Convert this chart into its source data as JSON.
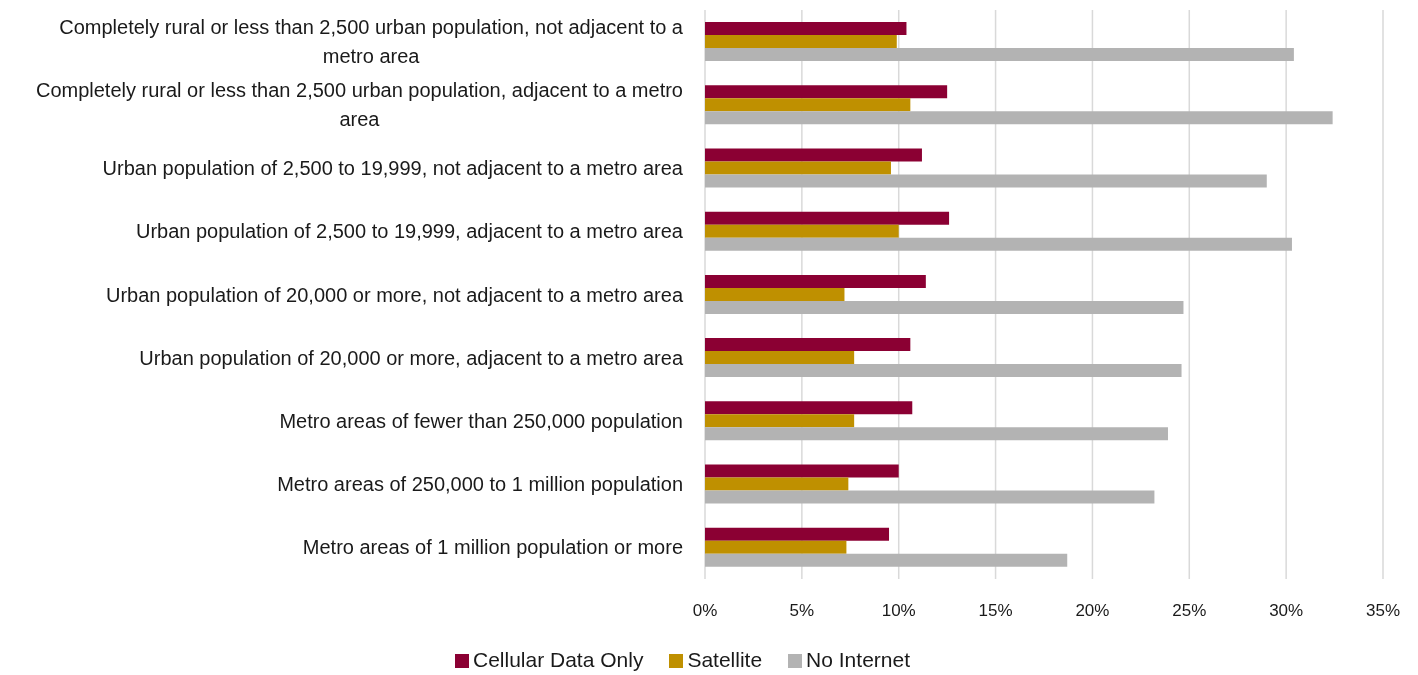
{
  "chart_data": {
    "type": "bar",
    "orientation": "horizontal",
    "categories": [
      "Completely rural or less than 2,500 urban population, not adjacent to a metro area",
      "Completely rural or less than 2,500 urban population, adjacent to a metro area",
      "Urban population of 2,500 to 19,999, not adjacent to a metro area",
      "Urban population of 2,500 to 19,999, adjacent to a metro area",
      "Urban population of 20,000 or more, not adjacent to a metro area",
      "Urban population of 20,000 or more, adjacent to a metro area",
      "Metro areas of fewer than 250,000 population",
      "Metro areas of 250,000 to 1 million population",
      "Metro areas of 1 million population or more"
    ],
    "series": [
      {
        "name": "Cellular Data Only",
        "color": "#8b0033",
        "values": [
          10.4,
          12.5,
          11.2,
          12.6,
          11.4,
          10.6,
          10.7,
          10.0,
          9.5
        ]
      },
      {
        "name": "Satellite",
        "color": "#bf9000",
        "values": [
          9.9,
          10.6,
          9.6,
          10.0,
          7.2,
          7.7,
          7.7,
          7.4,
          7.3
        ]
      },
      {
        "name": "No Internet",
        "color": "#b3b3b3",
        "values": [
          30.4,
          32.4,
          29.0,
          30.3,
          24.7,
          24.6,
          23.9,
          23.2,
          18.7
        ]
      }
    ],
    "xlim": [
      0,
      35
    ],
    "xticks": [
      {
        "value": 0,
        "label": "0%"
      },
      {
        "value": 5,
        "label": "5%"
      },
      {
        "value": 10,
        "label": "10%"
      },
      {
        "value": 15,
        "label": "15%"
      },
      {
        "value": 20,
        "label": "20%"
      },
      {
        "value": 25,
        "label": "25%"
      },
      {
        "value": 30,
        "label": "30%"
      },
      {
        "value": 35,
        "label": "35%"
      }
    ],
    "grid": "x",
    "legend": "bottom"
  }
}
